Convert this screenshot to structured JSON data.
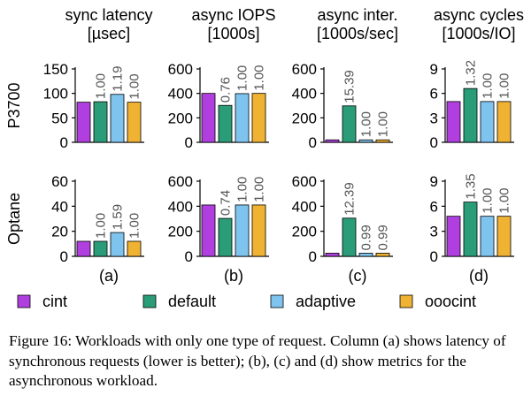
{
  "chart_data": {
    "type": "bar",
    "series_names": [
      "cint",
      "default",
      "adaptive",
      "ooocint"
    ],
    "colors": [
      "#b13fe0",
      "#2a9d78",
      "#7ec4ee",
      "#f0b232"
    ],
    "legend_position": "bottom",
    "grid": false,
    "rows": [
      "P3700",
      "Optane"
    ],
    "columns": [
      {
        "label": "(a)",
        "title_lines": [
          "sync latency",
          "[µsec]"
        ]
      },
      {
        "label": "(b)",
        "title_lines": [
          "async IOPS",
          "[1000s]"
        ]
      },
      {
        "label": "(c)",
        "title_lines": [
          "async inter.",
          "[1000s/sec]"
        ]
      },
      {
        "label": "(d)",
        "title_lines": [
          "async cycles",
          "[1000s/IO]"
        ]
      }
    ],
    "panels": [
      {
        "row": "P3700",
        "column": "(a)",
        "ylim": [
          0,
          150
        ],
        "yticks": [
          0,
          50,
          100,
          150
        ],
        "values": [
          82,
          83,
          98,
          82
        ],
        "labels": [
          "",
          "1.00",
          "1.19",
          "1.00"
        ]
      },
      {
        "row": "P3700",
        "column": "(b)",
        "ylim": [
          0,
          600
        ],
        "yticks": [
          0,
          200,
          400,
          600
        ],
        "values": [
          400,
          302,
          398,
          400
        ],
        "labels": [
          "",
          "0.76",
          "1.00",
          "1.00"
        ]
      },
      {
        "row": "P3700",
        "column": "(c)",
        "ylim": [
          0,
          600
        ],
        "yticks": [
          0,
          200,
          400,
          600
        ],
        "values": [
          20,
          298,
          20,
          20
        ],
        "labels": [
          "",
          "15.39",
          "1.00",
          "1.00"
        ]
      },
      {
        "row": "P3700",
        "column": "(d)",
        "ylim": [
          0,
          9
        ],
        "yticks": [
          0,
          3,
          6,
          9
        ],
        "values": [
          5.0,
          6.6,
          5.0,
          5.0
        ],
        "labels": [
          "",
          "1.32",
          "1.00",
          "1.00"
        ]
      },
      {
        "row": "Optane",
        "column": "(a)",
        "ylim": [
          0,
          60
        ],
        "yticks": [
          0,
          20,
          40,
          60
        ],
        "values": [
          12,
          12,
          19,
          12
        ],
        "labels": [
          "",
          "1.00",
          "1.59",
          "1.00"
        ]
      },
      {
        "row": "Optane",
        "column": "(b)",
        "ylim": [
          0,
          600
        ],
        "yticks": [
          0,
          200,
          400,
          600
        ],
        "values": [
          410,
          303,
          410,
          410
        ],
        "labels": [
          "",
          "0.74",
          "1.00",
          "1.00"
        ]
      },
      {
        "row": "Optane",
        "column": "(c)",
        "ylim": [
          0,
          600
        ],
        "yticks": [
          0,
          200,
          400,
          600
        ],
        "values": [
          25,
          305,
          25,
          25
        ],
        "labels": [
          "",
          "12.39",
          "0.99",
          "0.99"
        ]
      },
      {
        "row": "Optane",
        "column": "(d)",
        "ylim": [
          0,
          9
        ],
        "yticks": [
          0,
          3,
          6,
          9
        ],
        "values": [
          4.8,
          6.5,
          4.8,
          4.8
        ],
        "labels": [
          "",
          "1.35",
          "1.00",
          "1.00"
        ]
      }
    ]
  },
  "caption": "Figure 16: Workloads with only one type of request. Column (a) shows latency of synchronous requests (lower is better); (b), (c) and (d) show metrics for the asynchronous workload."
}
